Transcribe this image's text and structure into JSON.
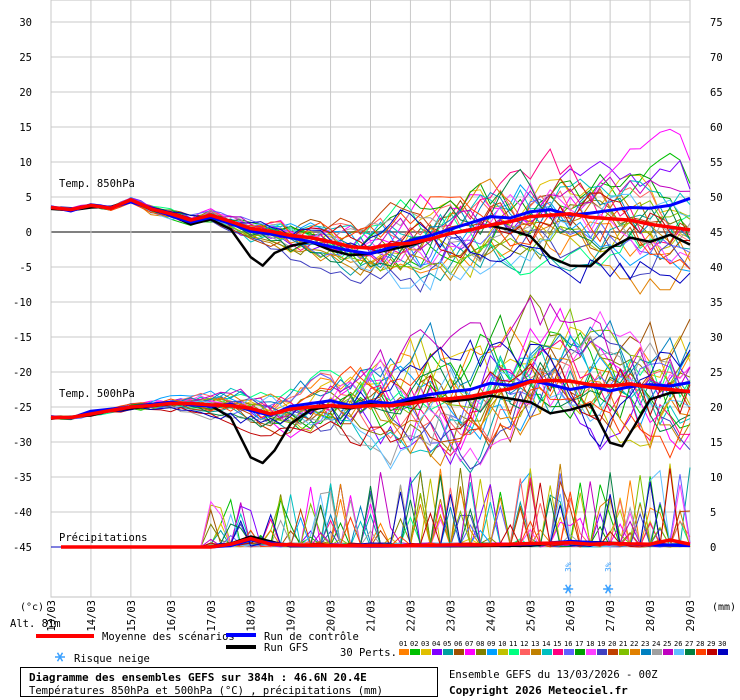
{
  "chart_data": {
    "type": "line",
    "left_axis_unit": "(°c)",
    "right_axis_unit": "(mm)",
    "left_ticks": [
      30,
      25,
      20,
      15,
      10,
      5,
      0,
      -5,
      -10,
      -15,
      -20,
      -25,
      -30,
      -35,
      -40,
      -45
    ],
    "right_ticks": [
      75,
      70,
      65,
      60,
      55,
      50,
      45,
      40,
      35,
      30,
      25,
      20,
      15,
      10,
      5,
      0
    ],
    "ylim": [
      -50,
      30
    ],
    "precip_ylim": [
      0,
      75
    ],
    "x_labels": [
      "13/03",
      "14/03",
      "15/03",
      "16/03",
      "17/03",
      "18/03",
      "19/03",
      "20/03",
      "21/03",
      "22/03",
      "23/03",
      "24/03",
      "25/03",
      "26/03",
      "27/03",
      "28/03",
      "29/03"
    ],
    "x_step_hours": 24,
    "section_labels": {
      "t850": "Temp. 850hPa",
      "t500": "Temp. 500hPa",
      "precip": "Précipitations"
    },
    "altitude": "Alt. 81m",
    "snow_markers": [
      {
        "day": 12.95,
        "label": "3%"
      },
      {
        "day": 13.95,
        "label": "3%"
      }
    ],
    "series": [
      {
        "name": "Moyenne des scénarios",
        "color": "#ff0000",
        "t850": [
          [
            0,
            3.5
          ],
          [
            0.5,
            3.2
          ],
          [
            1,
            3.8
          ],
          [
            1.5,
            3.4
          ],
          [
            2,
            4.6
          ],
          [
            2.5,
            3.3
          ],
          [
            3,
            2.6
          ],
          [
            3.5,
            1.7
          ],
          [
            4,
            2.4
          ],
          [
            4.5,
            1.5
          ],
          [
            5,
            0.5
          ],
          [
            5.5,
            0.1
          ],
          [
            6,
            -0.5
          ],
          [
            6.5,
            -0.8
          ],
          [
            7,
            -1.4
          ],
          [
            7.5,
            -2.1
          ],
          [
            8,
            -2.3
          ],
          [
            8.5,
            -1.8
          ],
          [
            9,
            -1.6
          ],
          [
            9.5,
            -1.0
          ],
          [
            10,
            -0.2
          ],
          [
            10.5,
            0.3
          ],
          [
            11,
            1.0
          ],
          [
            11.5,
            1.5
          ],
          [
            12,
            2.2
          ],
          [
            12.5,
            2.4
          ],
          [
            13,
            2.6
          ],
          [
            13.5,
            2.1
          ],
          [
            14,
            1.9
          ],
          [
            14.5,
            1.7
          ],
          [
            15,
            1.1
          ],
          [
            15.5,
            0.7
          ],
          [
            16,
            0.3
          ]
        ],
        "t500": [
          [
            0,
            -26.5
          ],
          [
            0.5,
            -26.5
          ],
          [
            1,
            -26.0
          ],
          [
            1.5,
            -25.5
          ],
          [
            2,
            -25.0
          ],
          [
            2.5,
            -24.8
          ],
          [
            3,
            -24.5
          ],
          [
            3.5,
            -24.5
          ],
          [
            4,
            -24.7
          ],
          [
            4.5,
            -24.8
          ],
          [
            5,
            -25.2
          ],
          [
            5.5,
            -26.0
          ],
          [
            6,
            -25.3
          ],
          [
            6.5,
            -25.0
          ],
          [
            7,
            -24.8
          ],
          [
            7.5,
            -25.0
          ],
          [
            8,
            -24.8
          ],
          [
            8.5,
            -24.8
          ],
          [
            9,
            -24.5
          ],
          [
            9.5,
            -24.0
          ],
          [
            10,
            -23.8
          ],
          [
            10.5,
            -23.5
          ],
          [
            11,
            -22.9
          ],
          [
            11.5,
            -22.4
          ],
          [
            12,
            -21.4
          ],
          [
            12.5,
            -21.2
          ],
          [
            13,
            -21.3
          ],
          [
            13.5,
            -21.8
          ],
          [
            14,
            -22.0
          ],
          [
            14.5,
            -21.7
          ],
          [
            15,
            -22.2
          ],
          [
            15.5,
            -22.5
          ],
          [
            16,
            -22.8
          ]
        ],
        "precip": [
          [
            0,
            0
          ],
          [
            4,
            0
          ],
          [
            4.5,
            0.4
          ],
          [
            5,
            1.2
          ],
          [
            5.5,
            0.4
          ],
          [
            6,
            0.3
          ],
          [
            7,
            0.2
          ],
          [
            8,
            0.2
          ],
          [
            9,
            0.2
          ],
          [
            10,
            0.3
          ],
          [
            11,
            0.3
          ],
          [
            12,
            0.5
          ],
          [
            13,
            0.6
          ],
          [
            13.5,
            0.4
          ],
          [
            14,
            0.5
          ],
          [
            15,
            0.4
          ],
          [
            15.5,
            1.0
          ],
          [
            16,
            0.4
          ]
        ]
      },
      {
        "name": "Run de contrôle",
        "color": "#0000ff",
        "t850": [
          [
            0,
            3.6
          ],
          [
            0.5,
            3.0
          ],
          [
            1,
            3.9
          ],
          [
            1.5,
            3.5
          ],
          [
            2,
            4.3
          ],
          [
            2.5,
            3.4
          ],
          [
            3,
            2.3
          ],
          [
            3.5,
            1.4
          ],
          [
            4,
            2.1
          ],
          [
            4.5,
            1.2
          ],
          [
            5,
            0.1
          ],
          [
            5.5,
            -0.3
          ],
          [
            6,
            -0.8
          ],
          [
            6.5,
            -1.4
          ],
          [
            7,
            -2.1
          ],
          [
            7.5,
            -2.7
          ],
          [
            8,
            -3.1
          ],
          [
            8.5,
            -2.2
          ],
          [
            9,
            -1.2
          ],
          [
            9.5,
            -0.5
          ],
          [
            10,
            0.4
          ],
          [
            10.5,
            1.3
          ],
          [
            11,
            2.2
          ],
          [
            11.5,
            2.0
          ],
          [
            12,
            2.9
          ],
          [
            12.5,
            3.2
          ],
          [
            13,
            2.4
          ],
          [
            13.5,
            2.7
          ],
          [
            14,
            3.1
          ],
          [
            14.5,
            3.5
          ],
          [
            15,
            3.4
          ],
          [
            15.5,
            3.8
          ],
          [
            16,
            4.8
          ]
        ],
        "t500": [
          [
            0,
            -26.4
          ],
          [
            0.5,
            -26.6
          ],
          [
            1,
            -25.6
          ],
          [
            1.5,
            -25.3
          ],
          [
            2,
            -25.0
          ],
          [
            2.5,
            -24.6
          ],
          [
            3,
            -24.3
          ],
          [
            3.5,
            -24.7
          ],
          [
            4,
            -24.9
          ],
          [
            4.5,
            -24.6
          ],
          [
            5,
            -25.5
          ],
          [
            5.5,
            -26.2
          ],
          [
            6,
            -24.9
          ],
          [
            6.5,
            -24.5
          ],
          [
            7,
            -24.1
          ],
          [
            7.5,
            -24.8
          ],
          [
            8,
            -24.2
          ],
          [
            8.5,
            -24.5
          ],
          [
            9,
            -23.8
          ],
          [
            9.5,
            -23.2
          ],
          [
            10,
            -22.8
          ],
          [
            10.5,
            -22.5
          ],
          [
            11,
            -21.6
          ],
          [
            11.5,
            -21.9
          ],
          [
            12,
            -21.2
          ],
          [
            12.5,
            -21.8
          ],
          [
            13,
            -22.5
          ],
          [
            13.5,
            -22.0
          ],
          [
            14,
            -22.7
          ],
          [
            14.5,
            -22.1
          ],
          [
            15,
            -21.8
          ],
          [
            15.5,
            -22.0
          ],
          [
            16,
            -21.5
          ]
        ],
        "precip": [
          [
            0,
            0
          ],
          [
            4,
            0
          ],
          [
            4.5,
            0.2
          ],
          [
            5,
            1.0
          ],
          [
            6,
            0.2
          ],
          [
            8,
            0.1
          ],
          [
            10,
            0.2
          ],
          [
            12,
            0.4
          ],
          [
            13,
            0.8
          ],
          [
            14,
            0.5
          ],
          [
            15,
            0.3
          ],
          [
            16,
            0.2
          ]
        ]
      },
      {
        "name": "Run GFS",
        "color": "#000000",
        "t850": [
          [
            0,
            3.3
          ],
          [
            0.5,
            3.1
          ],
          [
            1,
            3.5
          ],
          [
            1.5,
            3.6
          ],
          [
            2,
            4.5
          ],
          [
            2.5,
            3.2
          ],
          [
            3,
            2.4
          ],
          [
            3.5,
            1.1
          ],
          [
            4,
            1.8
          ],
          [
            4.5,
            0.4
          ],
          [
            5,
            -3.6
          ],
          [
            5.3,
            -4.8
          ],
          [
            5.6,
            -3.0
          ],
          [
            6,
            -2.0
          ],
          [
            6.5,
            -1.4
          ],
          [
            7,
            -2.6
          ],
          [
            7.5,
            -3.3
          ],
          [
            8,
            -3.1
          ],
          [
            8.5,
            -2.5
          ],
          [
            9,
            -1.9
          ],
          [
            9.5,
            -1.0
          ],
          [
            10,
            -0.2
          ],
          [
            10.5,
            0.4
          ],
          [
            11,
            0.9
          ],
          [
            11.5,
            0.3
          ],
          [
            12,
            -0.6
          ],
          [
            12.5,
            -3.6
          ],
          [
            13,
            -4.8
          ],
          [
            13.5,
            -4.9
          ],
          [
            14,
            -2.3
          ],
          [
            14.5,
            -0.8
          ],
          [
            15,
            -1.4
          ],
          [
            15.5,
            -0.4
          ],
          [
            16,
            -1.8
          ]
        ],
        "t500": [
          [
            0,
            -26.6
          ],
          [
            0.5,
            -26.4
          ],
          [
            1,
            -26.2
          ],
          [
            1.5,
            -25.5
          ],
          [
            2,
            -25.2
          ],
          [
            2.5,
            -24.9
          ],
          [
            3,
            -24.6
          ],
          [
            3.5,
            -24.6
          ],
          [
            4,
            -24.8
          ],
          [
            4.5,
            -26.5
          ],
          [
            5,
            -32.2
          ],
          [
            5.3,
            -33.0
          ],
          [
            5.6,
            -31.2
          ],
          [
            6,
            -27.4
          ],
          [
            6.5,
            -25.4
          ],
          [
            7,
            -24.9
          ],
          [
            7.5,
            -25.2
          ],
          [
            8,
            -24.6
          ],
          [
            8.5,
            -24.9
          ],
          [
            9,
            -24.1
          ],
          [
            9.5,
            -23.7
          ],
          [
            10,
            -24.2
          ],
          [
            10.5,
            -23.9
          ],
          [
            11,
            -23.4
          ],
          [
            11.5,
            -23.8
          ],
          [
            12,
            -24.3
          ],
          [
            12.5,
            -25.9
          ],
          [
            13,
            -25.4
          ],
          [
            13.5,
            -24.6
          ],
          [
            14,
            -30.1
          ],
          [
            14.3,
            -30.6
          ],
          [
            14.6,
            -27.8
          ],
          [
            15,
            -23.9
          ],
          [
            15.5,
            -23.0
          ],
          [
            16,
            -22.8
          ]
        ],
        "precip": [
          [
            0,
            0
          ],
          [
            4,
            0
          ],
          [
            4.5,
            0.5
          ],
          [
            5,
            1.5
          ],
          [
            6,
            0.1
          ],
          [
            10,
            0.1
          ],
          [
            12,
            0.2
          ],
          [
            13,
            0.8
          ],
          [
            14,
            0.6
          ],
          [
            15,
            0.3
          ],
          [
            16,
            0.2
          ]
        ]
      }
    ],
    "perturbations": {
      "count_label": "30 Perts.",
      "labels": [
        "01",
        "02",
        "03",
        "04",
        "05",
        "06",
        "07",
        "08",
        "09",
        "10",
        "11",
        "12",
        "13",
        "14",
        "15",
        "16",
        "17",
        "18",
        "19",
        "20",
        "21",
        "22",
        "23",
        "24",
        "25",
        "26",
        "27",
        "28",
        "29",
        "30"
      ],
      "colors": [
        "#ff8000",
        "#00c000",
        "#e0c000",
        "#8000ff",
        "#00a0a0",
        "#a05000",
        "#ff00ff",
        "#808000",
        "#00a0ff",
        "#c0c000",
        "#00ff80",
        "#ff6060",
        "#c08000",
        "#00c0c0",
        "#ff0080",
        "#6060ff",
        "#00a000",
        "#ff40ff",
        "#4040c0",
        "#c04000",
        "#80c000",
        "#e08000",
        "#0080c0",
        "#a0a0a0",
        "#c000c0",
        "#60c0ff",
        "#008040",
        "#ff4000",
        "#c00000",
        "#0000c0"
      ]
    }
  },
  "legend": {
    "mean": "Moyenne des scénarios",
    "control": "Run de contrôle",
    "gfs": "Run GFS",
    "snow": "Risque neige"
  },
  "footer": {
    "title": "Diagramme des ensembles GEFS sur 384h : 46.6N 20.4E",
    "subtitle": "Températures 850hPa et 500hPa (°C) , précipitations (mm)",
    "ensemble_info": "Ensemble GEFS du 13/03/2026 - 00Z",
    "copyright": "Copyright 2026 Meteociel.fr"
  },
  "colors": {
    "background": "#ffffff",
    "grid": "#c0c0c0",
    "zero_line": "#808080"
  }
}
